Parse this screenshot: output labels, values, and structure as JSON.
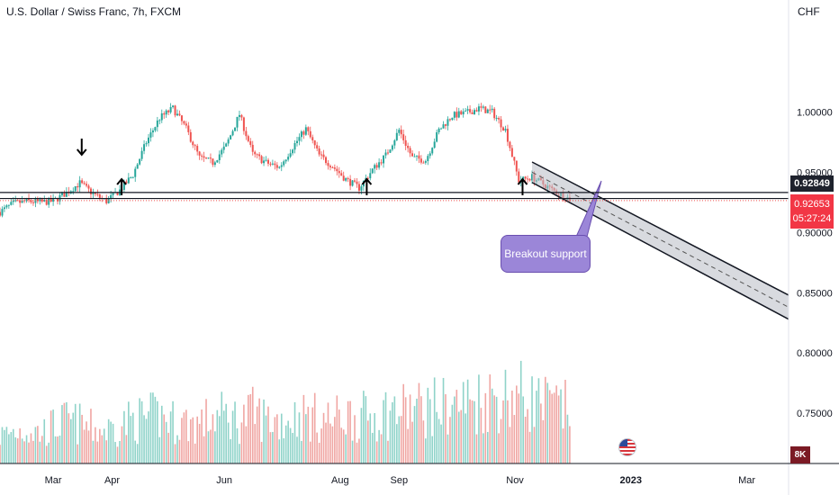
{
  "header": {
    "title": "U.S. Dollar / Swiss Franc, 7h, FXCM",
    "currency": "CHF"
  },
  "price_tags": {
    "line_price": "0.92849",
    "last_price": "0.92653",
    "countdown": "05:27:24"
  },
  "volume_tag": "8K",
  "annotation": {
    "label": "Breakout support"
  },
  "colors": {
    "up": "#26a69a",
    "down": "#ef5350",
    "vol_up": "#8fd3c9",
    "vol_down": "#f0a6a3",
    "support_line": "#131722",
    "dotted_price": "#ef5350",
    "channel_fill": "#b8bcc4",
    "callout": "#9b86d8"
  },
  "chart_data": {
    "type": "candlestick",
    "title": "U.S. Dollar / Swiss Franc, 7h, FXCM",
    "y_axis": {
      "ticks": [
        0.75,
        0.8,
        0.85,
        0.9,
        0.95,
        1.0
      ],
      "tick_labels": [
        "0.75000",
        "0.80000",
        "0.85000",
        "0.90000",
        "0.95000",
        "1.00000"
      ],
      "range": [
        0.715,
        1.075
      ],
      "unit": "CHF"
    },
    "x_axis": {
      "tick_labels": [
        "Mar",
        "Apr",
        "Jun",
        "Aug",
        "Sep",
        "Nov",
        "2023",
        "Mar"
      ],
      "bold_labels": [
        "2023"
      ],
      "range": [
        "2022-02-03",
        "2023-03-25"
      ]
    },
    "series": [
      {
        "kind": "price",
        "x": [
          "2022-02-03",
          "2022-02-10",
          "2022-02-17",
          "2022-02-24",
          "2022-03-03",
          "2022-03-10",
          "2022-03-17",
          "2022-03-24",
          "2022-03-31",
          "2022-04-07",
          "2022-04-14",
          "2022-04-21",
          "2022-04-28",
          "2022-05-05",
          "2022-05-12",
          "2022-05-19",
          "2022-05-26",
          "2022-06-02",
          "2022-06-09",
          "2022-06-16",
          "2022-06-23",
          "2022-06-30",
          "2022-07-07",
          "2022-07-14",
          "2022-07-21",
          "2022-07-28",
          "2022-08-04",
          "2022-08-11",
          "2022-08-18",
          "2022-08-25",
          "2022-09-01",
          "2022-09-08",
          "2022-09-15",
          "2022-09-22",
          "2022-09-29",
          "2022-10-06",
          "2022-10-13",
          "2022-10-20",
          "2022-10-27",
          "2022-11-03",
          "2022-11-10",
          "2022-11-17",
          "2022-11-24",
          "2022-12-01"
        ],
        "close": [
          0.917,
          0.924,
          0.926,
          0.925,
          0.926,
          0.933,
          0.941,
          0.932,
          0.926,
          0.935,
          0.948,
          0.975,
          0.995,
          1.003,
          0.986,
          0.962,
          0.958,
          0.972,
          0.998,
          0.965,
          0.958,
          0.954,
          0.971,
          0.986,
          0.964,
          0.955,
          0.944,
          0.937,
          0.952,
          0.964,
          0.985,
          0.962,
          0.96,
          0.985,
          0.997,
          0.999,
          1.003,
          1.0,
          0.985,
          0.943,
          0.946,
          0.939,
          0.932,
          0.927
        ]
      },
      {
        "kind": "volume",
        "x": [
          "2022-02-03",
          "2022-02-10",
          "2022-02-17",
          "2022-02-24",
          "2022-03-03",
          "2022-03-10",
          "2022-03-17",
          "2022-03-24",
          "2022-03-31",
          "2022-04-07",
          "2022-04-14",
          "2022-04-21",
          "2022-04-28",
          "2022-05-05",
          "2022-05-12",
          "2022-05-19",
          "2022-05-26",
          "2022-06-02",
          "2022-06-09",
          "2022-06-16",
          "2022-06-23",
          "2022-06-30",
          "2022-07-07",
          "2022-07-14",
          "2022-07-21",
          "2022-07-28",
          "2022-08-04",
          "2022-08-11",
          "2022-08-18",
          "2022-08-25",
          "2022-09-01",
          "2022-09-08",
          "2022-09-15",
          "2022-09-22",
          "2022-09-29",
          "2022-10-06",
          "2022-10-13",
          "2022-10-20",
          "2022-10-27",
          "2022-11-03",
          "2022-11-10",
          "2022-11-17",
          "2022-11-24",
          "2022-12-01"
        ],
        "values": [
          2.1,
          2.4,
          2.6,
          2.3,
          2.8,
          3.2,
          3.0,
          2.6,
          2.5,
          2.9,
          3.3,
          3.4,
          3.6,
          3.2,
          3.1,
          3.0,
          3.5,
          3.6,
          3.3,
          3.8,
          3.4,
          3.2,
          3.5,
          3.6,
          3.4,
          3.3,
          3.7,
          3.5,
          3.6,
          3.9,
          4.0,
          4.1,
          4.2,
          4.3,
          4.4,
          4.6,
          4.8,
          5.0,
          5.1,
          5.2,
          4.8,
          4.4,
          4.2,
          4.0
        ]
      }
    ],
    "support_levels": [
      0.9332,
      0.9282
    ],
    "dotted_price_level": 0.9265,
    "channel": {
      "start_date": "2022-11-10",
      "end_date": "2023-03-25",
      "upper": [
        0.9585,
        0.848
      ],
      "lower": [
        0.9415,
        0.828
      ]
    },
    "up_arrows": [
      "2022-04-08",
      "2022-08-15",
      "2022-11-05"
    ],
    "down_arrows": [
      "2022-03-18"
    ]
  }
}
